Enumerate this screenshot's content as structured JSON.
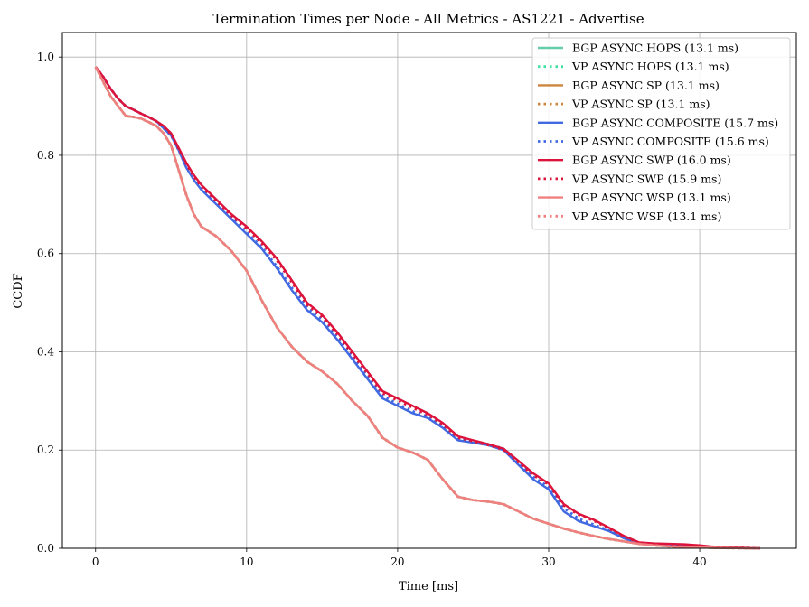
{
  "chart_data": {
    "type": "line",
    "title": "Termination Times per Node - All Metrics - AS1221 - Advertise",
    "xlabel": "Time [ms]",
    "ylabel": "CCDF",
    "xlim": [
      -2.2,
      46.4
    ],
    "ylim": [
      0.0,
      1.05
    ],
    "xticks": [
      0,
      10,
      20,
      30,
      40
    ],
    "yticks": [
      0.0,
      0.2,
      0.4,
      0.6,
      0.8,
      1.0
    ],
    "xtick_labels": [
      "0",
      "10",
      "20",
      "30",
      "40"
    ],
    "ytick_labels": [
      "0.0",
      "0.2",
      "0.4",
      "0.6",
      "0.8",
      "1.0"
    ],
    "grid": true,
    "legend_position": "top-right",
    "series": [
      {
        "name": "BGP ASYNC HOPS (13.1 ms)",
        "color": "#66cdaa",
        "style": "solid",
        "curve": "wsp"
      },
      {
        "name": "VP ASYNC HOPS (13.1 ms)",
        "color": "#40e0a0",
        "style": "dotted",
        "curve": "wsp"
      },
      {
        "name": "BGP ASYNC SP (13.1 ms)",
        "color": "#cd853f",
        "style": "solid",
        "curve": "wsp"
      },
      {
        "name": "VP ASYNC SP (13.1 ms)",
        "color": "#cd853f",
        "style": "dotted",
        "curve": "wsp"
      },
      {
        "name": "BGP ASYNC COMPOSITE (15.7 ms)",
        "color": "#4169e1",
        "style": "solid",
        "curve": "composite"
      },
      {
        "name": "VP ASYNC COMPOSITE (15.6 ms)",
        "color": "#4169e1",
        "style": "dotted",
        "curve": "composite_vp"
      },
      {
        "name": "BGP ASYNC SWP (16.0 ms)",
        "color": "#dc143c",
        "style": "solid",
        "curve": "swp"
      },
      {
        "name": "VP ASYNC SWP (15.9 ms)",
        "color": "#dc143c",
        "style": "dotted",
        "curve": "swp_vp"
      },
      {
        "name": "BGP ASYNC WSP (13.1 ms)",
        "color": "#f08080",
        "style": "solid",
        "curve": "wsp"
      },
      {
        "name": "VP ASYNC WSP (13.1 ms)",
        "color": "#f08080",
        "style": "dotted",
        "curve": "wsp"
      }
    ],
    "curves": {
      "wsp": {
        "x": [
          0,
          0.5,
          1,
          1.5,
          2,
          2.5,
          3,
          3.5,
          4,
          4.5,
          5,
          5.5,
          6,
          6.5,
          7,
          8,
          9,
          10,
          11,
          12,
          13,
          14,
          15,
          16,
          17,
          18,
          19,
          20,
          21,
          22,
          23,
          24,
          25,
          26,
          27,
          28,
          29,
          30,
          31,
          32,
          33,
          34,
          35,
          36,
          37,
          38,
          39,
          40,
          41,
          42,
          43,
          44
        ],
        "y": [
          0.98,
          0.95,
          0.92,
          0.9,
          0.88,
          0.878,
          0.875,
          0.868,
          0.86,
          0.845,
          0.82,
          0.77,
          0.72,
          0.68,
          0.655,
          0.635,
          0.605,
          0.565,
          0.505,
          0.45,
          0.41,
          0.38,
          0.36,
          0.335,
          0.3,
          0.27,
          0.225,
          0.205,
          0.195,
          0.18,
          0.14,
          0.105,
          0.098,
          0.095,
          0.09,
          0.075,
          0.06,
          0.05,
          0.04,
          0.032,
          0.025,
          0.019,
          0.014,
          0.009,
          0.006,
          0.004,
          0.003,
          0.002,
          0.001,
          0.0005,
          0.0002,
          0.0
        ]
      },
      "composite": {
        "x": [
          0,
          0.5,
          1,
          1.5,
          2,
          2.5,
          3,
          3.5,
          4,
          4.5,
          5,
          5.5,
          6,
          6.5,
          7,
          8,
          9,
          10,
          11,
          12,
          13,
          14,
          15,
          16,
          17,
          18,
          19,
          20,
          21,
          22,
          23,
          24,
          25,
          26,
          27,
          28,
          29,
          30,
          31,
          32,
          33,
          34,
          35,
          36,
          37,
          38,
          39,
          40,
          41,
          42,
          43,
          44
        ],
        "y": [
          0.98,
          0.96,
          0.935,
          0.915,
          0.9,
          0.893,
          0.885,
          0.878,
          0.87,
          0.855,
          0.84,
          0.81,
          0.775,
          0.75,
          0.73,
          0.7,
          0.67,
          0.64,
          0.61,
          0.57,
          0.525,
          0.485,
          0.46,
          0.425,
          0.385,
          0.345,
          0.305,
          0.29,
          0.275,
          0.265,
          0.245,
          0.22,
          0.215,
          0.21,
          0.2,
          0.17,
          0.14,
          0.12,
          0.075,
          0.055,
          0.045,
          0.035,
          0.02,
          0.01,
          0.008,
          0.006,
          0.005,
          0.004,
          0.002,
          0.001,
          0.0005,
          0.0
        ]
      },
      "composite_vp": {
        "x": [
          0,
          0.5,
          1,
          1.5,
          2,
          2.5,
          3,
          3.5,
          4,
          4.5,
          5,
          5.5,
          6,
          6.5,
          7,
          8,
          9,
          10,
          11,
          12,
          13,
          14,
          15,
          16,
          17,
          18,
          19,
          20,
          21,
          22,
          23,
          24,
          25,
          26,
          27,
          28,
          29,
          30,
          31,
          32,
          33,
          34,
          35,
          36,
          37,
          38,
          39,
          40,
          41,
          42,
          43,
          44
        ],
        "y": [
          0.98,
          0.96,
          0.935,
          0.915,
          0.9,
          0.893,
          0.885,
          0.878,
          0.87,
          0.855,
          0.84,
          0.81,
          0.778,
          0.752,
          0.732,
          0.703,
          0.673,
          0.643,
          0.613,
          0.574,
          0.53,
          0.49,
          0.465,
          0.43,
          0.39,
          0.35,
          0.31,
          0.294,
          0.279,
          0.268,
          0.249,
          0.223,
          0.217,
          0.212,
          0.203,
          0.175,
          0.145,
          0.125,
          0.082,
          0.06,
          0.048,
          0.036,
          0.021,
          0.011,
          0.008,
          0.006,
          0.005,
          0.004,
          0.002,
          0.001,
          0.0005,
          0.0
        ]
      },
      "swp": {
        "x": [
          0,
          0.5,
          1,
          1.5,
          2,
          2.5,
          3,
          3.5,
          4,
          4.5,
          5,
          5.5,
          6,
          6.5,
          7,
          8,
          9,
          10,
          11,
          12,
          13,
          14,
          15,
          16,
          17,
          18,
          19,
          20,
          21,
          22,
          23,
          24,
          25,
          26,
          27,
          28,
          29,
          30,
          31,
          32,
          33,
          34,
          35,
          36,
          37,
          38,
          39,
          40,
          41,
          42,
          43,
          44
        ],
        "y": [
          0.98,
          0.96,
          0.935,
          0.915,
          0.9,
          0.893,
          0.885,
          0.878,
          0.87,
          0.86,
          0.845,
          0.815,
          0.785,
          0.76,
          0.74,
          0.71,
          0.68,
          0.655,
          0.625,
          0.59,
          0.545,
          0.5,
          0.475,
          0.44,
          0.4,
          0.36,
          0.32,
          0.305,
          0.29,
          0.275,
          0.255,
          0.228,
          0.22,
          0.212,
          0.203,
          0.178,
          0.152,
          0.132,
          0.09,
          0.07,
          0.058,
          0.042,
          0.025,
          0.012,
          0.01,
          0.009,
          0.008,
          0.006,
          0.003,
          0.002,
          0.001,
          0.0
        ]
      },
      "swp_vp": {
        "x": [
          0,
          0.5,
          1,
          1.5,
          2,
          2.5,
          3,
          3.5,
          4,
          4.5,
          5,
          5.5,
          6,
          6.5,
          7,
          8,
          9,
          10,
          11,
          12,
          13,
          14,
          15,
          16,
          17,
          18,
          19,
          20,
          21,
          22,
          23,
          24,
          25,
          26,
          27,
          28,
          29,
          30,
          31,
          32,
          33,
          34,
          35,
          36,
          37,
          38,
          39,
          40,
          41,
          42,
          43,
          44
        ],
        "y": [
          0.98,
          0.96,
          0.935,
          0.915,
          0.9,
          0.893,
          0.885,
          0.878,
          0.87,
          0.858,
          0.843,
          0.813,
          0.782,
          0.757,
          0.737,
          0.707,
          0.677,
          0.651,
          0.621,
          0.586,
          0.541,
          0.496,
          0.471,
          0.436,
          0.396,
          0.356,
          0.316,
          0.301,
          0.286,
          0.272,
          0.252,
          0.225,
          0.218,
          0.21,
          0.201,
          0.175,
          0.148,
          0.13,
          0.087,
          0.068,
          0.056,
          0.04,
          0.024,
          0.011,
          0.009,
          0.008,
          0.007,
          0.005,
          0.003,
          0.002,
          0.001,
          0.0
        ]
      }
    }
  }
}
